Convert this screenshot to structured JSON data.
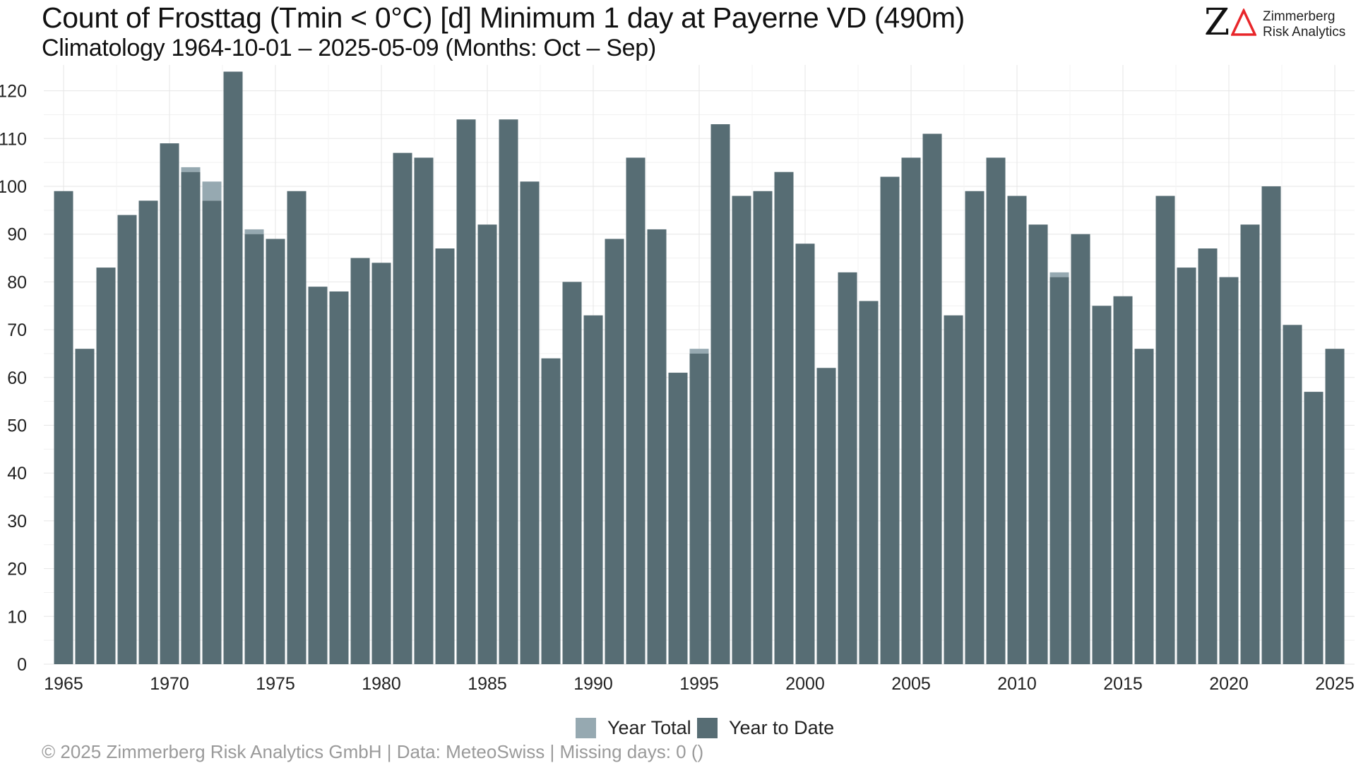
{
  "header": {
    "title": "Count of Frosttag (Tmin < 0°C) [d] Minimum 1 day at Payerne  VD (490m)",
    "subtitle": "Climatology 1964-10-01 – 2025-05-09 (Months: Oct – Sep)"
  },
  "logo": {
    "letter": "Z",
    "line1": "Zimmerberg",
    "line2": "Risk Analytics"
  },
  "footer": {
    "text": "©  2025 Zimmerberg Risk Analytics GmbH | Data: MeteoSwiss | Missing days: 0 ()"
  },
  "colors": {
    "year_total": "#96a9b1",
    "year_to_date": "#576d74",
    "grid": "#e6e6e6",
    "logo_delta": "#e8262a"
  },
  "chart_data": {
    "type": "bar",
    "x": [
      1965,
      1966,
      1967,
      1968,
      1969,
      1970,
      1971,
      1972,
      1973,
      1974,
      1975,
      1976,
      1977,
      1978,
      1979,
      1980,
      1981,
      1982,
      1983,
      1984,
      1985,
      1986,
      1987,
      1988,
      1989,
      1990,
      1991,
      1992,
      1993,
      1994,
      1995,
      1996,
      1997,
      1998,
      1999,
      2000,
      2001,
      2002,
      2003,
      2004,
      2005,
      2006,
      2007,
      2008,
      2009,
      2010,
      2011,
      2012,
      2013,
      2014,
      2015,
      2016,
      2017,
      2018,
      2019,
      2020,
      2021,
      2022,
      2023,
      2024,
      2025
    ],
    "series": [
      {
        "name": "Year Total",
        "values": [
          99,
          66,
          83,
          94,
          97,
          109,
          104,
          101,
          124,
          91,
          89,
          99,
          79,
          78,
          85,
          84,
          107,
          106,
          87,
          114,
          92,
          114,
          101,
          64,
          80,
          73,
          89,
          106,
          91,
          61,
          66,
          113,
          98,
          99,
          103,
          88,
          62,
          82,
          76,
          102,
          106,
          111,
          73,
          99,
          106,
          98,
          92,
          82,
          90,
          75,
          77,
          66,
          98,
          83,
          87,
          81,
          92,
          100,
          71,
          57,
          66
        ]
      },
      {
        "name": "Year to Date",
        "values": [
          99,
          66,
          83,
          94,
          97,
          109,
          103,
          97,
          124,
          90,
          89,
          99,
          79,
          78,
          85,
          84,
          107,
          106,
          87,
          114,
          92,
          114,
          101,
          64,
          80,
          73,
          89,
          106,
          91,
          61,
          65,
          113,
          98,
          99,
          103,
          88,
          62,
          82,
          76,
          102,
          106,
          111,
          73,
          99,
          106,
          98,
          92,
          81,
          90,
          75,
          77,
          66,
          98,
          83,
          87,
          81,
          92,
          100,
          71,
          57,
          66
        ]
      }
    ],
    "x_ticks": [
      "1965",
      "1970",
      "1975",
      "1980",
      "1985",
      "1990",
      "1995",
      "2000",
      "2005",
      "2010",
      "2015",
      "2020",
      "2025"
    ],
    "y_ticks": [
      "0",
      "10",
      "20",
      "30",
      "40",
      "50",
      "60",
      "70",
      "80",
      "90",
      "100",
      "110",
      "120"
    ],
    "ylim": [
      0,
      124
    ],
    "xlabel": "",
    "ylabel": "",
    "grid": true,
    "legend_position": "bottom"
  }
}
